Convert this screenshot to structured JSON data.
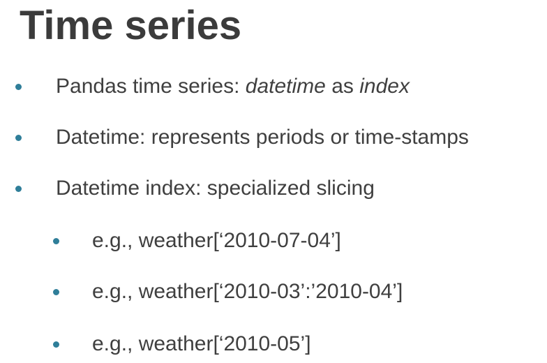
{
  "slide": {
    "title": "Time series",
    "accent_color": "#2f7e99",
    "bullets": [
      {
        "level": 1,
        "parts": [
          {
            "text": "Pandas time series: ",
            "italic": false
          },
          {
            "text": "datetime",
            "italic": true
          },
          {
            "text": " as ",
            "italic": false
          },
          {
            "text": "index",
            "italic": true
          }
        ]
      },
      {
        "level": 1,
        "text": "Datetime: represents periods or time-stamps"
      },
      {
        "level": 1,
        "text": "Datetime index: specialized slicing"
      },
      {
        "level": 2,
        "text": "e.g., weather[‘2010-07-04’]"
      },
      {
        "level": 2,
        "text": "e.g., weather[‘2010-03’:’2010-04’]"
      },
      {
        "level": 2,
        "text": "e.g., weather[‘2010-05’]"
      }
    ]
  }
}
